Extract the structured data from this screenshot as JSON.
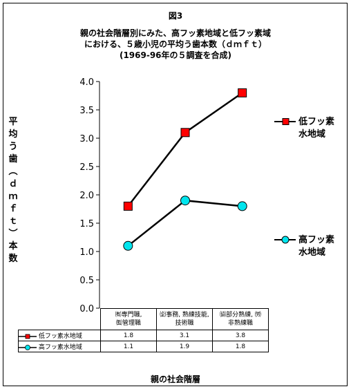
{
  "figure_label": "図3",
  "title_lines": [
    "親の社会階層別にみた、高フッ素地域と低フッ素域",
    "における、５歳小児の平均う歯本数（ｄｍｆｔ）",
    "(1969-96年の５調査を合成)"
  ],
  "y_axis_label_chars": [
    "平",
    "均",
    "う",
    "歯",
    "︵",
    "ｄ",
    "ｍ",
    "ｆ",
    "ｔ",
    "︶",
    "本",
    "数"
  ],
  "x_axis_label": "親の社会階層",
  "table": {
    "category_lines": [
      [
        "㈲専門職,",
        "㈼管理職"
      ],
      [
        "㈽事務, 熟練技能,",
        "技術職"
      ],
      [
        "㈿部分熟練, ㈸",
        "非熟練職"
      ]
    ]
  },
  "legend": [
    {
      "line1": "低フッ素",
      "line2": "水地域"
    },
    {
      "line1": "高フッ素",
      "line2": "水地域"
    }
  ],
  "chart_data": {
    "type": "line",
    "categories": [
      "㈲専門職, ㈼管理職",
      "㈽事務, 熟練技能, 技術職",
      "㈿部分熟練, ㈸非熟練職"
    ],
    "series": [
      {
        "name": "低フッ素水地域",
        "values": [
          1.8,
          3.1,
          3.8
        ],
        "marker": "square",
        "color": "#ff0000",
        "value_labels": [
          "1.8",
          "3.1",
          "3.8"
        ]
      },
      {
        "name": "高フッ素水地域",
        "values": [
          1.1,
          1.9,
          1.8
        ],
        "marker": "circle",
        "color": "#00e5ee",
        "value_labels": [
          "1.1",
          "1.9",
          "1.8"
        ]
      }
    ],
    "ylim": [
      0,
      4
    ],
    "y_ticks": [
      "0.0",
      "0.5",
      "1.0",
      "1.5",
      "2.0",
      "2.5",
      "3.0",
      "3.5",
      "4.0"
    ],
    "grid": false,
    "legend_position": "right"
  }
}
